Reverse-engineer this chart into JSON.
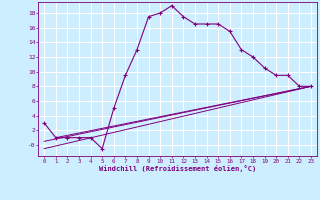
{
  "title": "",
  "xlabel": "Windchill (Refroidissement éolien,°C)",
  "background_color": "#cceeff",
  "grid_color": "#ffffff",
  "line_color": "#800080",
  "xlim": [
    -0.5,
    23.5
  ],
  "ylim": [
    -1.5,
    19.5
  ],
  "xticks": [
    0,
    1,
    2,
    3,
    4,
    5,
    6,
    7,
    8,
    9,
    10,
    11,
    12,
    13,
    14,
    15,
    16,
    17,
    18,
    19,
    20,
    21,
    22,
    23
  ],
  "yticks": [
    0,
    2,
    4,
    6,
    8,
    10,
    12,
    14,
    16,
    18
  ],
  "ytick_labels": [
    "-0",
    "2",
    "4",
    "6",
    "8",
    "10",
    "12",
    "14",
    "16",
    "18"
  ],
  "curve1_x": [
    0,
    1,
    2,
    3,
    4,
    5,
    6,
    7,
    8,
    9,
    10,
    11,
    12,
    13,
    14,
    15,
    16,
    17,
    18,
    19,
    20,
    21,
    22,
    23
  ],
  "curve1_y": [
    3,
    1,
    1,
    1,
    1,
    -0.5,
    5,
    9.5,
    13,
    17.5,
    18,
    19,
    17.5,
    16.5,
    16.5,
    16.5,
    15.5,
    13,
    12,
    10.5,
    9.5,
    9.5,
    8,
    8
  ],
  "line1_x": [
    0,
    23
  ],
  "line1_y": [
    -0.5,
    8
  ],
  "line2_x": [
    0,
    23
  ],
  "line2_y": [
    0.5,
    8
  ],
  "line3_x": [
    1,
    23
  ],
  "line3_y": [
    1,
    8
  ]
}
